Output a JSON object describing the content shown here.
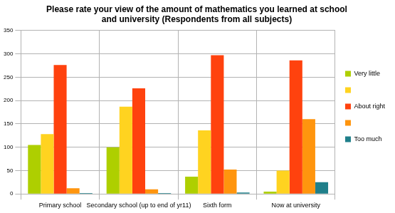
{
  "chart_data": {
    "type": "bar",
    "title": [
      "Please rate your view of the amount of mathematics you learned at school",
      "and university (Respondents from all subjects)"
    ],
    "categories": [
      "Primary school",
      "Secondary school (up to end of yr11)",
      "Sixth form",
      "Now at university"
    ],
    "series": [
      {
        "name": "Very little",
        "color": "#aecf00",
        "values": [
          105,
          100,
          37,
          5
        ]
      },
      {
        "name": null,
        "color": "#ffd320",
        "values": [
          128,
          187,
          136,
          50
        ]
      },
      {
        "name": "About right",
        "color": "#ff420e",
        "values": [
          276,
          226,
          297,
          286
        ]
      },
      {
        "name": null,
        "color": "#ff950e",
        "values": [
          12,
          10,
          52,
          160
        ]
      },
      {
        "name": "Too much",
        "color": "#1f7f8a",
        "values": [
          2,
          2,
          3,
          25
        ]
      }
    ],
    "ylim": [
      0,
      350
    ],
    "yticks": [
      0,
      50,
      100,
      150,
      200,
      250,
      300,
      350
    ],
    "grid": true,
    "legend": "right"
  }
}
